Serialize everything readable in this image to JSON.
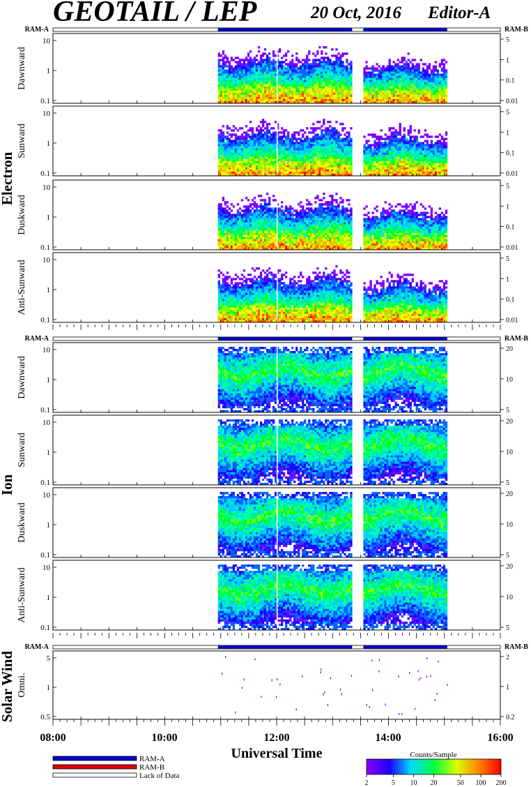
{
  "header": {
    "title": "GEOTAIL / LEP",
    "date": "20 Oct, 2016",
    "editor": "Editor-A"
  },
  "ram_labels": {
    "left": "RAM-A",
    "right": "RAM-B"
  },
  "groups": [
    {
      "name": "Electron",
      "panels": [
        "Dawnward",
        "Sunward",
        "Duskward",
        "Anti-Sunward"
      ]
    },
    {
      "name": "Ion",
      "panels": [
        "Dawnward",
        "Sunward",
        "Duskward",
        "Anti-Sunward"
      ]
    },
    {
      "name": "Solar Wind",
      "panels": [
        "Omni."
      ]
    }
  ],
  "axes": {
    "x_label": "Universal Time",
    "x_ticks": [
      "08:00",
      "10:00",
      "12:00",
      "14:00",
      "16:00"
    ],
    "x_range_hours": [
      8,
      16
    ],
    "electron_left_ticks": [
      "10",
      "1",
      "0.1"
    ],
    "electron_right_ticks": [
      "5",
      "1",
      "0.1",
      "0.01"
    ],
    "ion_left_ticks": [
      "10",
      "1",
      "0.1"
    ],
    "ion_right_ticks": [
      "20",
      "10",
      "5"
    ],
    "sw_left_ticks": [
      "5",
      "1",
      "0.5"
    ],
    "sw_right_ticks": [
      "2",
      "1",
      "0.2"
    ]
  },
  "chart_data": {
    "type": "heatmap",
    "x_unit": "hours UT",
    "data_intervals": [
      [
        10.95,
        13.35
      ],
      [
        13.55,
        15.05
      ]
    ],
    "ram_a_intervals": [
      [
        10.95,
        13.35
      ],
      [
        13.55,
        15.05
      ]
    ],
    "colorbar": {
      "title": "Counts/Sample",
      "ticks": [
        "2",
        "5",
        "10",
        "20",
        "50",
        "100",
        "200"
      ],
      "range": [
        2,
        200
      ],
      "scale": "log"
    }
  },
  "legend": [
    {
      "label": "RAM-A",
      "color": "#0000cc"
    },
    {
      "label": "RAM-B",
      "color": "#dd0000"
    },
    {
      "label": "Lack of Data",
      "color": "#ffffff"
    }
  ]
}
